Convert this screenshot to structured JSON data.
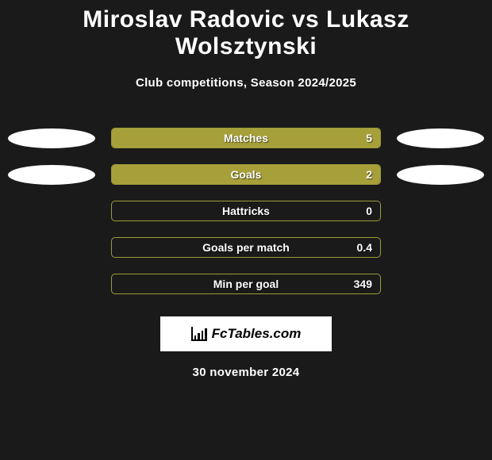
{
  "title": "Miroslav Radovic vs Lukasz Wolsztynski",
  "subtitle": "Club competitions, Season 2024/2025",
  "colors": {
    "background": "#1a1a1a",
    "bar_fill": "#a7a03a",
    "bar_border": "#9b9b3a",
    "ellipse": "#ffffff",
    "text": "#ffffff",
    "logo_bg": "#ffffff",
    "logo_text": "#000000"
  },
  "stats": [
    {
      "label": "Matches",
      "value": "5",
      "fill_pct": 100,
      "left_ellipse": true,
      "right_ellipse": true
    },
    {
      "label": "Goals",
      "value": "2",
      "fill_pct": 100,
      "left_ellipse": true,
      "right_ellipse": true
    },
    {
      "label": "Hattricks",
      "value": "0",
      "fill_pct": 0,
      "left_ellipse": false,
      "right_ellipse": false
    },
    {
      "label": "Goals per match",
      "value": "0.4",
      "fill_pct": 0,
      "left_ellipse": false,
      "right_ellipse": false
    },
    {
      "label": "Min per goal",
      "value": "349",
      "fill_pct": 0,
      "left_ellipse": false,
      "right_ellipse": false
    }
  ],
  "logo": {
    "text": "FcTables.com"
  },
  "date": "30 november 2024"
}
